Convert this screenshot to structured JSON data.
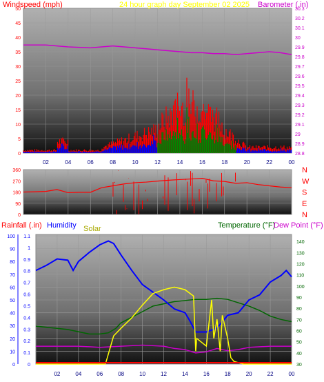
{
  "chart_data": [
    {
      "type": "line",
      "title": "24 hour graph day   September 02 2025",
      "ylabel": "Windspeed (mph)",
      "y2label": "Barometer (.in)",
      "x_ticks": [
        "02",
        "04",
        "06",
        "08",
        "10",
        "12",
        "14",
        "16",
        "18",
        "20",
        "22",
        "00"
      ],
      "ylim": [
        0,
        50
      ],
      "y_ticks": [
        0,
        5,
        10,
        15,
        20,
        25,
        30,
        35,
        40,
        45,
        50
      ],
      "y2lim": [
        28.8,
        30.3
      ],
      "y2_ticks": [
        "28.8",
        "28.9",
        "29",
        "29.1",
        "29.2",
        "29.3",
        "29.4",
        "29.5",
        "29.6",
        "29.7",
        "29.8",
        "29.9",
        "30",
        "30.1",
        "30.2",
        "30.3"
      ],
      "grid": true,
      "colors": {
        "gust": "#ff0000",
        "avg": "#0000ff",
        "green": "#008800",
        "barometer": "#cc00cc",
        "title": "#ffff00",
        "labels": "#ff0000"
      },
      "series": [
        {
          "axis": "y2",
          "x": [
            0,
            2,
            4,
            6,
            7,
            8,
            9,
            10,
            11,
            12,
            13,
            14,
            15,
            16,
            17,
            18,
            19,
            20,
            21,
            22,
            23,
            24
          ],
          "values": [
            29.92,
            29.92,
            29.9,
            29.89,
            29.9,
            29.91,
            29.9,
            29.89,
            29.88,
            29.87,
            29.86,
            29.85,
            29.84,
            29.84,
            29.83,
            29.83,
            29.82,
            29.83,
            29.84,
            29.85,
            29.84,
            29.82
          ]
        }
      ]
    },
    {
      "type": "line",
      "ylim": [
        0,
        360
      ],
      "y_ticks": [
        0,
        90,
        180,
        270,
        360
      ],
      "direction_labels": [
        "N",
        "W",
        "S",
        "E",
        "N"
      ],
      "colors": {
        "direction": "#ff0000"
      },
      "series": [
        {
          "x": [
            0,
            1,
            2,
            3,
            4,
            5,
            6,
            7,
            8,
            9,
            10,
            11,
            12,
            13,
            14,
            15,
            16,
            17,
            18,
            19,
            20,
            21,
            22,
            23,
            24
          ],
          "values": [
            180,
            182,
            185,
            200,
            175,
            178,
            178,
            215,
            230,
            245,
            255,
            260,
            268,
            275,
            280,
            285,
            290,
            270,
            265,
            250,
            255,
            240,
            230,
            220,
            215
          ]
        }
      ]
    },
    {
      "type": "line",
      "ylabel": "Rainfall (.in)",
      "y1label": "Humidity",
      "solar_label": "Solar",
      "y2label_a": "Temperature (°F)",
      "y2label_b": "Dew Point (°F)",
      "x_ticks": [
        "02",
        "04",
        "06",
        "08",
        "10",
        "12",
        "14",
        "16",
        "18",
        "20",
        "22",
        "00"
      ],
      "rain_ticks": [
        "0",
        "0.1",
        "0.2",
        "0.3",
        "0.4",
        "0.5",
        "0.6",
        "0.7",
        "0.8",
        "0.9",
        "1",
        "1.1"
      ],
      "humidity_ticks": [
        0,
        10,
        20,
        30,
        40,
        50,
        60,
        70,
        80,
        90,
        100
      ],
      "temp_ticks": [
        30,
        40,
        50,
        60,
        70,
        80,
        90,
        100,
        110,
        120,
        130,
        140
      ],
      "ylim": [
        0,
        100
      ],
      "y2lim": [
        30,
        145
      ],
      "grid": true,
      "colors": {
        "humidity": "#0000ff",
        "temperature": "#006600",
        "dewpoint": "#cc00cc",
        "solar": "#ffff00",
        "rain": "#0000ff",
        "rain_label": "#ff0000",
        "humidity_label": "#0000ff",
        "solar_label": "#aaaa00",
        "temp_label": "#006600",
        "dew_label": "#cc00cc"
      },
      "series": [
        {
          "name": "Humidity",
          "axis": "y1",
          "x": [
            0,
            1,
            2,
            3,
            3.5,
            4,
            5,
            6,
            6.8,
            7.3,
            8,
            9,
            10,
            11,
            12,
            13,
            14,
            14.5,
            15,
            16,
            17,
            18,
            19,
            20,
            21,
            22,
            23,
            23.5,
            24
          ],
          "values": [
            73,
            77,
            82,
            81,
            73,
            80,
            87,
            93,
            96,
            94,
            85,
            73,
            62,
            56,
            50,
            43,
            40,
            33,
            25,
            25,
            28,
            38,
            40,
            50,
            54,
            64,
            69,
            73,
            68
          ]
        },
        {
          "name": "Temperature",
          "axis": "y2",
          "x": [
            0,
            1,
            2,
            3,
            4,
            5,
            6,
            6.8,
            7.5,
            8,
            9,
            10,
            11,
            12,
            13,
            14,
            15,
            16,
            17,
            18,
            19,
            20,
            21,
            22,
            23,
            24
          ],
          "values": [
            64,
            63,
            62,
            61,
            59,
            57,
            57,
            58,
            62,
            67,
            72,
            77,
            82,
            84,
            86,
            87,
            88,
            88,
            89,
            88,
            85,
            82,
            78,
            73,
            70,
            68
          ]
        },
        {
          "name": "Dew Point",
          "axis": "y2",
          "x": [
            0,
            2,
            4,
            6,
            8,
            10,
            12,
            13,
            14,
            15,
            16,
            17,
            18,
            19,
            20,
            22,
            24
          ],
          "values": [
            46,
            46,
            46,
            45,
            46,
            47,
            46,
            44,
            43,
            40,
            41,
            44,
            42,
            43,
            45,
            46,
            46
          ]
        },
        {
          "name": "Solar",
          "axis": "y1",
          "x": [
            0,
            6.5,
            6.6,
            7.3,
            8,
            9,
            10,
            11,
            12,
            13,
            14,
            14.8,
            15.0,
            15.1,
            16,
            16.5,
            16.7,
            17,
            17.3,
            17.5,
            18,
            18.3,
            18.6,
            19.5,
            24
          ],
          "values": [
            0,
            0,
            2,
            22,
            28,
            36,
            46,
            55,
            58,
            60,
            58,
            53,
            10,
            20,
            14,
            50,
            20,
            35,
            10,
            38,
            20,
            5,
            2,
            0,
            0
          ]
        }
      ]
    }
  ]
}
